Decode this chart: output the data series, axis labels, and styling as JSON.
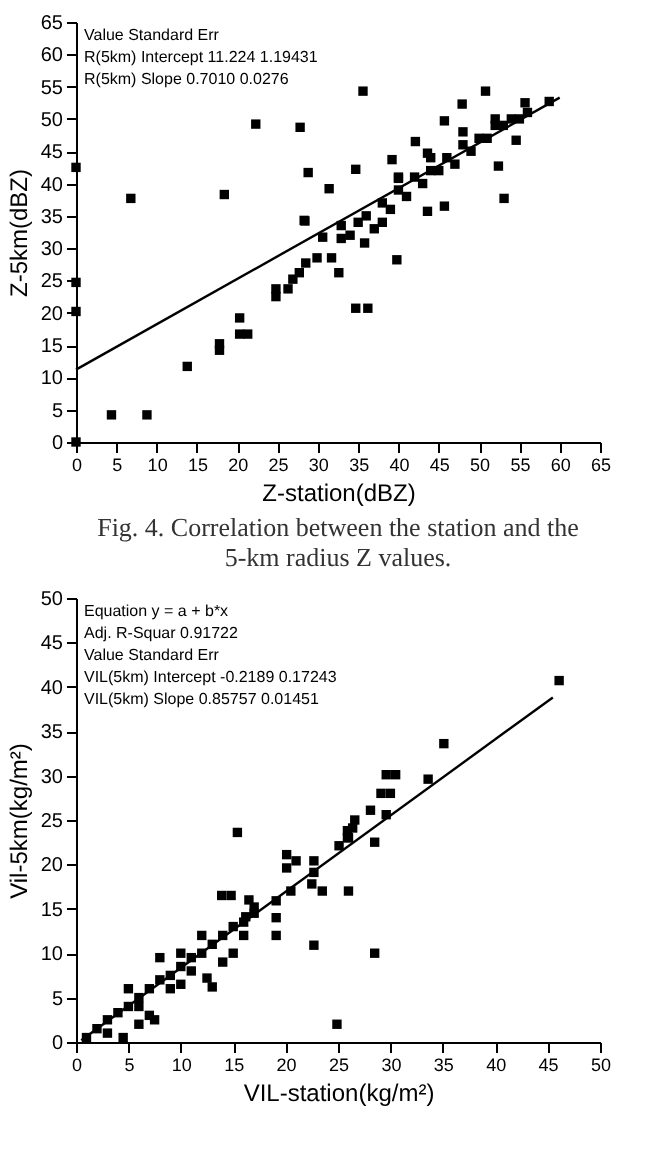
{
  "chart_data": [
    {
      "type": "scatter",
      "title": "Fig. 4. Correlation between the station and the 5-km radius Z values.",
      "xlabel": "Z-station(dBZ)",
      "ylabel": "Z-5km(dBZ)",
      "xlim": [
        0,
        65
      ],
      "xticks": [
        0,
        5,
        10,
        15,
        20,
        25,
        30,
        35,
        40,
        45,
        50,
        55,
        60,
        65
      ],
      "ylim": [
        0,
        65
      ],
      "yticks": [
        0,
        5,
        10,
        15,
        20,
        25,
        30,
        35,
        40,
        45,
        50,
        55,
        60,
        65
      ],
      "grid": false,
      "marker": "square",
      "annotations": [
        "Value   Standard Err",
        "R(5km)   Intercept   11.224   1.19431",
        "R(5km)   Slope   0.7010   0.0276"
      ],
      "series": [
        {
          "color": "#000000",
          "x": [
            0,
            6.8,
            18.4,
            22.3,
            27.8,
            28.8,
            31.4,
            34.7,
            35.6,
            28.4,
            50.8,
            45.7,
            47.9,
            55.7,
            58.7,
            54.6,
            53.1,
            52.4,
            43.6,
            45.7,
            40,
            39.2,
            42.1,
            43.6,
            36,
            38,
            40,
            42,
            44,
            46,
            48,
            50,
            52,
            54,
            56,
            37,
            39,
            41,
            43,
            45,
            47,
            49,
            51,
            53,
            55,
            40,
            44,
            48,
            52,
            0,
            0,
            0,
            4.4,
            8.8,
            13.8,
            17.8,
            17.8,
            20.3,
            20.3,
            21.3,
            24.8,
            24.8,
            26.3,
            26.9,
            27.7,
            28.3,
            28.5,
            29.9,
            30.6,
            31.7,
            32.6,
            32.9,
            32.9,
            34.7,
            36.2,
            35.8,
            39.8,
            34,
            35,
            38
          ],
          "values": [
            42.5,
            37.7,
            38.3,
            49.2,
            48.7,
            41.7,
            39.2,
            42.2,
            54.3,
            34.2,
            54.3,
            49.7,
            52.3,
            52.5,
            52.7,
            46.7,
            37.7,
            42.7,
            35.7,
            36.5,
            40.8,
            43.7,
            46.5,
            44.7,
            35,
            37,
            39,
            41,
            42,
            44,
            46,
            47,
            49,
            50,
            51,
            33,
            36,
            38,
            40,
            42,
            43,
            45,
            47,
            49,
            50,
            41,
            44,
            48,
            50,
            24.7,
            20.2,
            0,
            4.2,
            4.2,
            11.7,
            15.2,
            14.2,
            19.2,
            16.7,
            16.7,
            23.7,
            22.5,
            23.7,
            25.2,
            26.2,
            34.3,
            27.7,
            28.5,
            31.7,
            28.5,
            26.2,
            31.5,
            33.5,
            20.7,
            20.7,
            30.8,
            28.2,
            32,
            34,
            34
          ]
        },
        {
          "type": "line",
          "color": "#000000",
          "marker": "none",
          "line_style": "solid",
          "x": [
            0,
            60
          ],
          "values": [
            11.2,
            53.3
          ]
        }
      ]
    },
    {
      "type": "scatter",
      "xlabel": "VIL-station(kg/m²)",
      "ylabel": "Vil-5km(kg/m²)",
      "xlim": [
        0,
        50
      ],
      "xticks": [
        0,
        5,
        10,
        15,
        20,
        25,
        30,
        35,
        40,
        45,
        50
      ],
      "ylim": [
        0,
        50
      ],
      "yticks": [
        0,
        5,
        10,
        15,
        20,
        25,
        30,
        35,
        40,
        45,
        50
      ],
      "grid": false,
      "marker": "square",
      "annotations": [
        "Equation   y = a + b*x",
        "Adj. R-Squar   0.91722",
        "Value   Standard Err",
        "VIL(5km)   Intercept   -0.2189   0.17243",
        "VIL(5km)   Slope   0.85757   0.01451"
      ],
      "series": [
        {
          "color": "#000000",
          "x": [
            46.1,
            35.1,
            33.6,
            29.6,
            30.5,
            29.1,
            30,
            29.6,
            28.1,
            26.6,
            26.4,
            25.9,
            25.9,
            28.5,
            15.4,
            25.1,
            26,
            20.1,
            20.1,
            22.7,
            22.7,
            21,
            22.5,
            23.5,
            20.5,
            22.7,
            26,
            28.5,
            24.9,
            19.1,
            19.1,
            19.1,
            13.9,
            14.8,
            16.5,
            16.2,
            1,
            2,
            3,
            4,
            5,
            6,
            7,
            8,
            9,
            10,
            11,
            12,
            13,
            14,
            15,
            16,
            17,
            5,
            7,
            6,
            4.5,
            7.5,
            12.5,
            13,
            14,
            15,
            8,
            10,
            12,
            16,
            17,
            3,
            6,
            9,
            11,
            10
          ],
          "values": [
            40.7,
            33.6,
            29.6,
            30.1,
            30.1,
            28,
            28,
            25.6,
            26.1,
            25,
            24.1,
            23.8,
            23,
            22.5,
            23.6,
            22.1,
            23,
            21.1,
            19.6,
            20.4,
            19.1,
            20.4,
            17.8,
            17,
            17,
            10.9,
            17,
            10,
            2,
            15.9,
            14,
            12,
            16.5,
            16.5,
            16,
            14.1,
            0.5,
            1.5,
            2.5,
            3.3,
            4,
            5,
            6,
            7,
            7.5,
            8.5,
            9.5,
            10,
            11,
            12,
            13,
            13.5,
            14.5,
            6,
            3,
            2,
            0.5,
            2.5,
            7.2,
            6.2,
            9,
            10,
            9.5,
            10,
            12,
            12,
            15.2,
            1,
            4,
            6,
            8,
            6.5
          ]
        },
        {
          "type": "line",
          "color": "#000000",
          "marker": "none",
          "line_style": "solid",
          "x": [
            0.5,
            45.5
          ],
          "values": [
            0.2,
            38.8
          ]
        }
      ]
    }
  ]
}
